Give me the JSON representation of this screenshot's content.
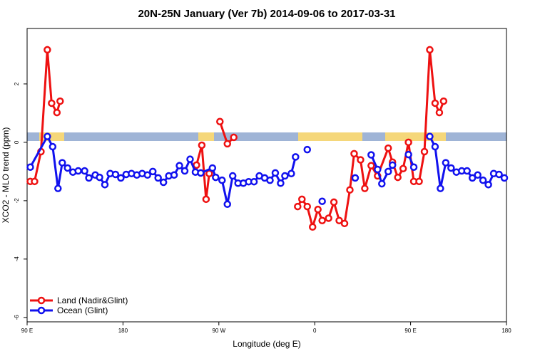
{
  "chart_data": {
    "type": "line",
    "title": "20N-25N January (Ver 7b)   2014-09-06 to 2017-03-31",
    "x_label": "Longitude (deg E)",
    "y_label": "XCO2 - MLO trend (ppm)",
    "xlim": [
      90,
      540
    ],
    "ylim": [
      -6.15,
      3.9
    ],
    "xticks": [
      {
        "value": 90,
        "label": "90 E"
      },
      180,
      {
        "value": 270,
        "label": "90 W"
      },
      {
        "value": 360,
        "label": "0"
      },
      {
        "value": 450,
        "label": "90 E"
      },
      {
        "value": 540,
        "label": "180"
      }
    ],
    "yticks": [
      -6,
      -4,
      -2,
      0,
      2
    ],
    "legend": "bottom-left",
    "series": [
      {
        "name": "Land (Nadir&Glint)",
        "color": "#ee1111",
        "x": [
          93,
          97,
          103,
          109,
          113,
          118,
          121,
          null,
          249,
          254,
          258,
          261,
          null,
          271,
          278,
          284,
          null,
          344,
          348,
          353,
          358,
          363,
          367,
          373,
          378,
          383,
          388,
          393,
          397,
          403,
          407,
          413,
          419,
          429,
          433,
          438,
          443,
          448,
          453,
          458,
          463,
          468,
          473,
          477,
          481
        ],
        "values": [
          -1.34,
          -1.34,
          -0.32,
          3.17,
          1.34,
          1.02,
          1.41,
          null,
          -0.78,
          -0.1,
          -1.95,
          -1.07,
          null,
          0.71,
          -0.05,
          0.17,
          null,
          -2.2,
          -1.95,
          -2.2,
          -2.9,
          -2.3,
          -2.68,
          -2.6,
          -2.05,
          -2.68,
          -2.78,
          -1.63,
          -0.39,
          -0.6,
          -1.58,
          -0.8,
          -1.15,
          -0.2,
          -0.68,
          -1.2,
          -0.9,
          0,
          -1.34,
          -1.34,
          -0.32,
          3.17,
          1.34,
          1.02,
          1.41
        ]
      },
      {
        "name": "Ocean (Glint)",
        "color": "#1111ee",
        "x": [
          93,
          109,
          114,
          119,
          123,
          128,
          133,
          138,
          144,
          148,
          154,
          158,
          163,
          168,
          173,
          178,
          183,
          188,
          193,
          198,
          203,
          208,
          213,
          218,
          223,
          228,
          233,
          238,
          243,
          248,
          253,
          264,
          267,
          273,
          278,
          283,
          288,
          293,
          298,
          303,
          308,
          313,
          318,
          323,
          328,
          332,
          338,
          342,
          null,
          353,
          null,
          367,
          null,
          398,
          null,
          413,
          419,
          423,
          429,
          433,
          null,
          448,
          453,
          null,
          468,
          473,
          478,
          483,
          488,
          493,
          498,
          503,
          508,
          513,
          518,
          523,
          528,
          533,
          538
        ],
        "values": [
          -0.85,
          0.2,
          -0.15,
          -1.58,
          -0.7,
          -0.88,
          -1.02,
          -0.98,
          -0.98,
          -1.22,
          -1.12,
          -1.2,
          -1.45,
          -1.07,
          -1.1,
          -1.22,
          -1.1,
          -1.07,
          -1.12,
          -1.07,
          -1.12,
          -1.0,
          -1.22,
          -1.37,
          -1.15,
          -1.12,
          -0.8,
          -0.98,
          -0.58,
          -1.02,
          -1.05,
          -0.88,
          -1.2,
          -1.3,
          -2.12,
          -1.15,
          -1.4,
          -1.4,
          -1.35,
          -1.35,
          -1.15,
          -1.22,
          -1.3,
          -1.05,
          -1.4,
          -1.15,
          -1.07,
          -0.5,
          null,
          -0.25,
          null,
          -2.02,
          null,
          -1.22,
          null,
          -0.43,
          -0.93,
          -1.42,
          -1.0,
          -0.78,
          null,
          -0.42,
          -0.85,
          null,
          0.2,
          -0.15,
          -1.58,
          -0.7,
          -0.88,
          -1.02,
          -0.98,
          -0.98,
          -1.22,
          -1.12,
          -1.3,
          -1.45,
          -1.07,
          -1.1,
          -1.22
        ]
      }
    ]
  }
}
